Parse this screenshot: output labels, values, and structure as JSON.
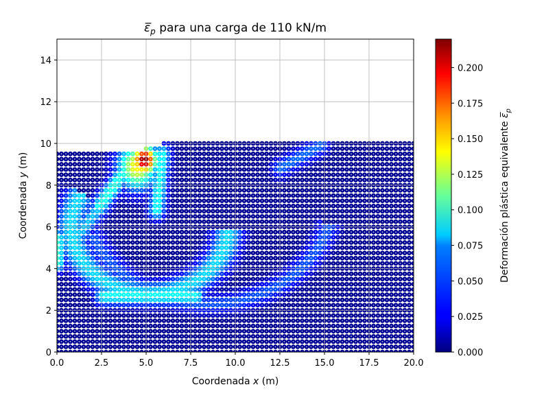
{
  "chart_data": {
    "type": "scatter",
    "title_symbol": "ε̅",
    "title_sub": "p",
    "title_rest": " para una carga de 110 kN/m",
    "xlabel_pre": "Coordenada ",
    "xlabel_var": "x",
    "xlabel_post": " (m)",
    "ylabel_pre": "Coordenada ",
    "ylabel_var": "y",
    "ylabel_post": " (m)",
    "xlim": [
      0,
      20
    ],
    "ylim": [
      0,
      15
    ],
    "xticks": [
      "0.0",
      "2.5",
      "5.0",
      "7.5",
      "10.0",
      "12.5",
      "15.0",
      "17.5",
      "20.0"
    ],
    "xtick_values": [
      0,
      2.5,
      5,
      7.5,
      10,
      12.5,
      15,
      17.5,
      20
    ],
    "yticks": [
      "0",
      "2",
      "4",
      "6",
      "8",
      "10",
      "12",
      "14"
    ],
    "ytick_values": [
      0,
      2,
      4,
      6,
      8,
      10,
      12,
      14
    ],
    "grid": true,
    "colormap": "jet",
    "colorbar": {
      "label_pre": "Deformación plástica equivalente ",
      "label_symbol": "ε̅",
      "label_sub": "p",
      "range": [
        0,
        0.22
      ],
      "ticks": [
        "0.000",
        "0.025",
        "0.050",
        "0.075",
        "0.100",
        "0.125",
        "0.150",
        "0.175",
        "0.200"
      ],
      "tick_values": [
        0,
        0.025,
        0.05,
        0.075,
        0.1,
        0.125,
        0.15,
        0.175,
        0.2
      ]
    },
    "particle_grid": {
      "x_range": [
        0,
        20
      ],
      "x_count": 81,
      "y_range": [
        0,
        10
      ],
      "y_count": 41,
      "surface_left_y": 9.7,
      "surface_right_y": 10.0,
      "slope_start_x": 4.8,
      "slope_end_x": 5.8
    },
    "strain_bands": [
      {
        "name": "main slip arc",
        "shape": "arc",
        "cx": 5.2,
        "cy": 6.0,
        "rx": 4.4,
        "ry": 3.2,
        "theta_start": 150,
        "theta_end": 360,
        "width": 0.45,
        "value": 0.075
      },
      {
        "name": "outer arc",
        "shape": "arc",
        "cx": 8.5,
        "cy": 7.5,
        "rx": 7.0,
        "ry": 5.2,
        "theta_start": 200,
        "theta_end": 345,
        "width": 0.35,
        "value": 0.045
      },
      {
        "name": "inner wedge",
        "shape": "line",
        "x1": 2.4,
        "y1": 7.0,
        "x2": 4.4,
        "y2": 9.4,
        "width": 0.35,
        "value": 0.09
      },
      {
        "name": "inner wedge lower",
        "shape": "line",
        "x1": 1.2,
        "y1": 5.6,
        "x2": 2.6,
        "y2": 7.2,
        "width": 0.35,
        "value": 0.07
      },
      {
        "name": "vertical shear",
        "shape": "line",
        "x1": 5.6,
        "y1": 6.8,
        "x2": 5.9,
        "y2": 9.5,
        "width": 0.35,
        "value": 0.085
      },
      {
        "name": "base band",
        "shape": "line",
        "x1": 2.6,
        "y1": 2.7,
        "x2": 7.8,
        "y2": 2.7,
        "width": 0.35,
        "value": 0.085
      },
      {
        "name": "left edge",
        "shape": "line",
        "x1": 0.0,
        "y1": 4.3,
        "x2": 0.0,
        "y2": 5.4,
        "width": 0.35,
        "value": 0.095
      },
      {
        "name": "right upper band",
        "shape": "line",
        "x1": 12.5,
        "y1": 8.8,
        "x2": 14.8,
        "y2": 9.9,
        "width": 0.35,
        "value": 0.05
      },
      {
        "name": "peak zone",
        "shape": "blob",
        "x": 4.9,
        "y": 9.2,
        "r": 0.5,
        "value": 0.22
      },
      {
        "name": "peak halo",
        "shape": "blob",
        "x": 4.5,
        "y": 8.9,
        "r": 0.8,
        "value": 0.14
      }
    ]
  }
}
